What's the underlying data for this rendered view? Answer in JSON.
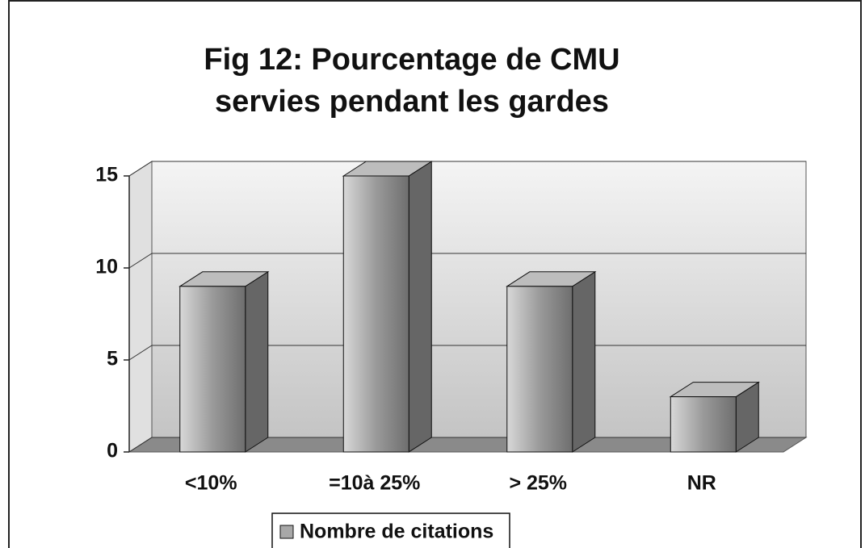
{
  "chart_data": {
    "type": "bar3d",
    "title": "Fig 12: Pourcentage de CMU servies pendant les gardes",
    "categories": [
      "<10%",
      "=10à 25%",
      "> 25%",
      "NR"
    ],
    "series": [
      {
        "name": "Nombre de citations",
        "color": "#a8a8a8",
        "values": [
          9,
          15,
          9,
          3
        ]
      }
    ],
    "ylim": [
      0,
      15
    ],
    "yticks": [
      0,
      5,
      10,
      15
    ],
    "grid": true,
    "legend": "bottom"
  }
}
